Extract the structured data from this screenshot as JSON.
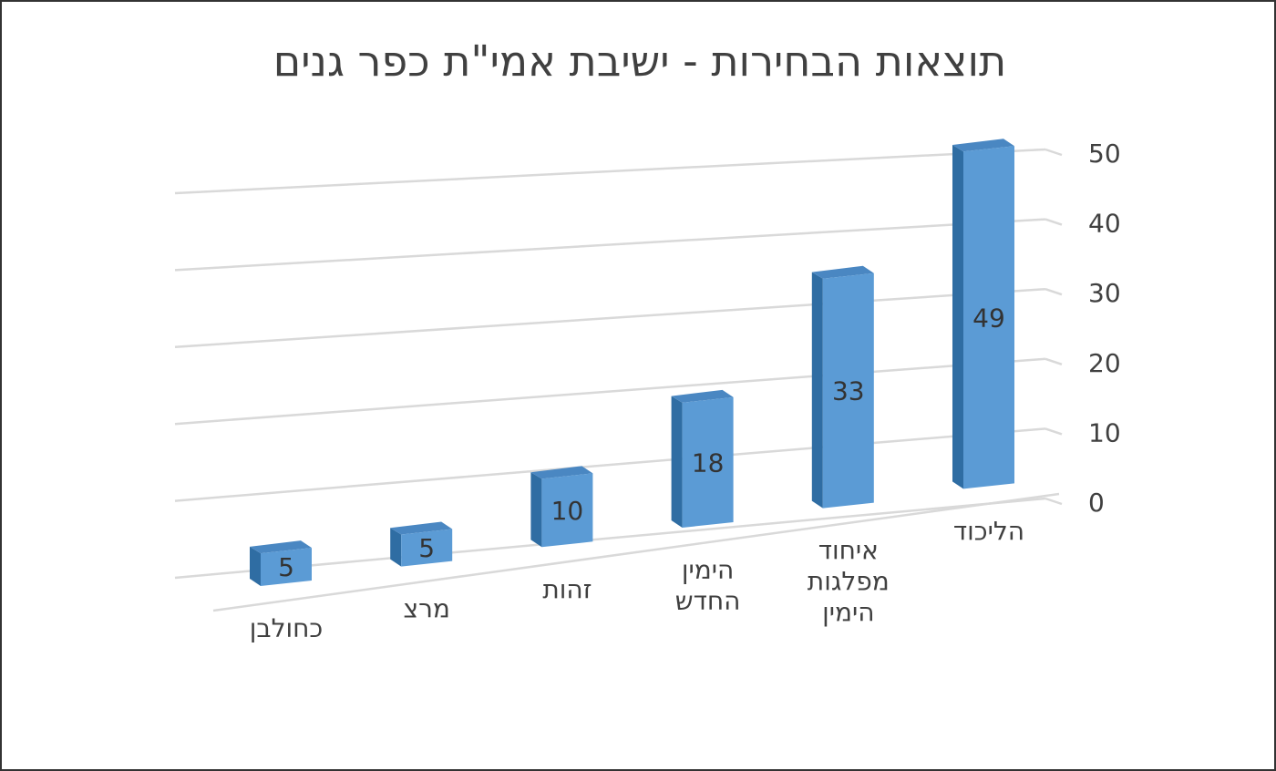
{
  "chart_data": {
    "type": "bar",
    "title": "תוצאות הבחירות - ישיבת אמי\"ת כפר גנים",
    "categories": [
      "כחולבן",
      "מרצ",
      "זהות",
      "הימין החדש",
      "איחוד מפלגות הימין",
      "הליכוד"
    ],
    "category_lines": [
      [
        "כחולבן"
      ],
      [
        "מרצ"
      ],
      [
        "זהות"
      ],
      [
        "הימין",
        "החדש"
      ],
      [
        "איחוד",
        "מפלגות",
        "הימין"
      ],
      [
        "הליכוד"
      ]
    ],
    "values": [
      5,
      5,
      10,
      18,
      33,
      49
    ],
    "data_labels": [
      "5",
      "5",
      "10",
      "18",
      "33",
      "49"
    ],
    "ylim": [
      0,
      50
    ],
    "yticks": [
      "0",
      "10",
      "20",
      "30",
      "40",
      "50"
    ],
    "ytick_values": [
      0,
      10,
      20,
      30,
      40,
      50
    ],
    "grid": true,
    "style": "3d-column",
    "colors": {
      "bar_front": "#5b9bd5",
      "bar_side": "#2f6da3",
      "bar_top": "#4a87c2",
      "gridline": "#d9d9d9",
      "text": "#404040"
    }
  }
}
